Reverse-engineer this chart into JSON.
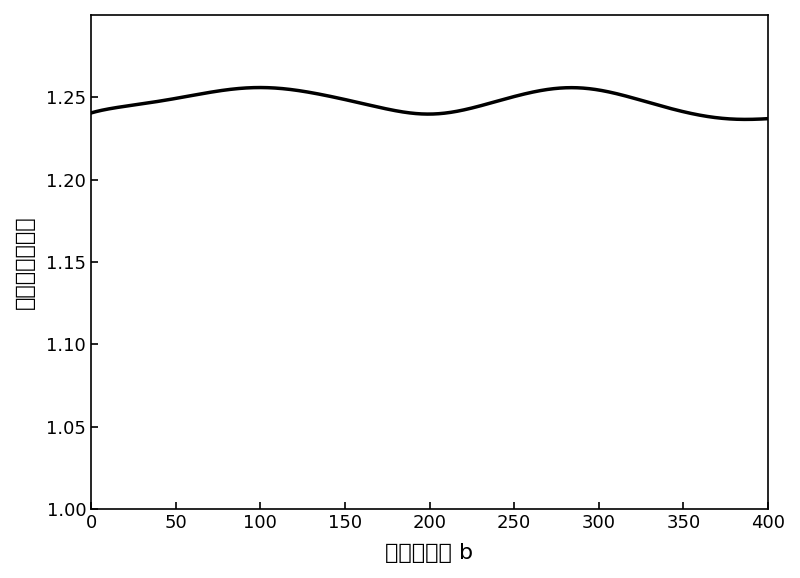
{
  "xlabel": "底电极长度 b",
  "ylabel": "归一化电场强度",
  "xlim": [
    0,
    400
  ],
  "ylim": [
    1.0,
    1.3
  ],
  "xticks": [
    0,
    50,
    100,
    150,
    200,
    250,
    300,
    350,
    400
  ],
  "yticks": [
    1.0,
    1.05,
    1.1,
    1.15,
    1.2,
    1.25
  ],
  "line_color": "#000000",
  "line_width": 2.5,
  "background_color": "#ffffff",
  "xlabel_fontsize": 16,
  "ylabel_fontsize": 16,
  "tick_fontsize": 13
}
